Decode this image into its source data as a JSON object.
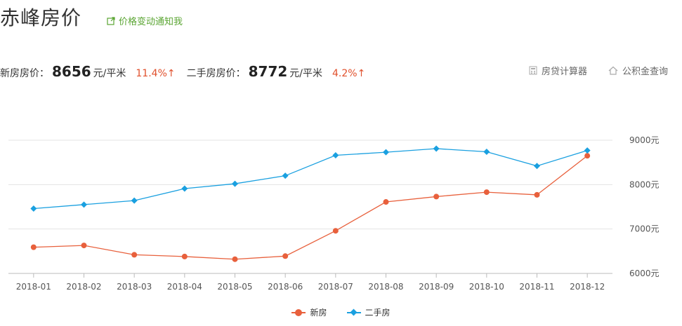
{
  "header": {
    "title": "赤峰房价",
    "notify_label": "价格变动通知我"
  },
  "prices": {
    "new_label": "新房房价：",
    "new_value": "8656",
    "new_unit": "元/平米",
    "new_change": "11.4%↑",
    "second_label": "二手房房价：",
    "second_value": "8772",
    "second_unit": "元/平米",
    "second_change": "4.2%↑"
  },
  "tools": {
    "loan_calc": "房贷计算器",
    "fund_query": "公积金查询"
  },
  "colors": {
    "new": "#e8603c",
    "second": "#1aa0e0",
    "up": "#e0502c",
    "notify": "#5aa532"
  },
  "chart_data": {
    "type": "line",
    "categories": [
      "2018-01",
      "2018-02",
      "2018-03",
      "2018-04",
      "2018-05",
      "2018-06",
      "2018-07",
      "2018-08",
      "2018-09",
      "2018-10",
      "2018-11",
      "2018-12"
    ],
    "series": [
      {
        "name": "新房",
        "values": [
          6590,
          6630,
          6420,
          6380,
          6320,
          6390,
          6960,
          7610,
          7730,
          7830,
          7770,
          8650
        ]
      },
      {
        "name": "二手房",
        "values": [
          7460,
          7550,
          7640,
          7910,
          8020,
          8200,
          8660,
          8730,
          8810,
          8740,
          8420,
          8770
        ]
      }
    ],
    "y_ticks": [
      "6000元",
      "7000元",
      "8000元",
      "9000元"
    ],
    "ylim": [
      6000,
      9000
    ],
    "grid": true,
    "legend_position": "bottom-center"
  }
}
